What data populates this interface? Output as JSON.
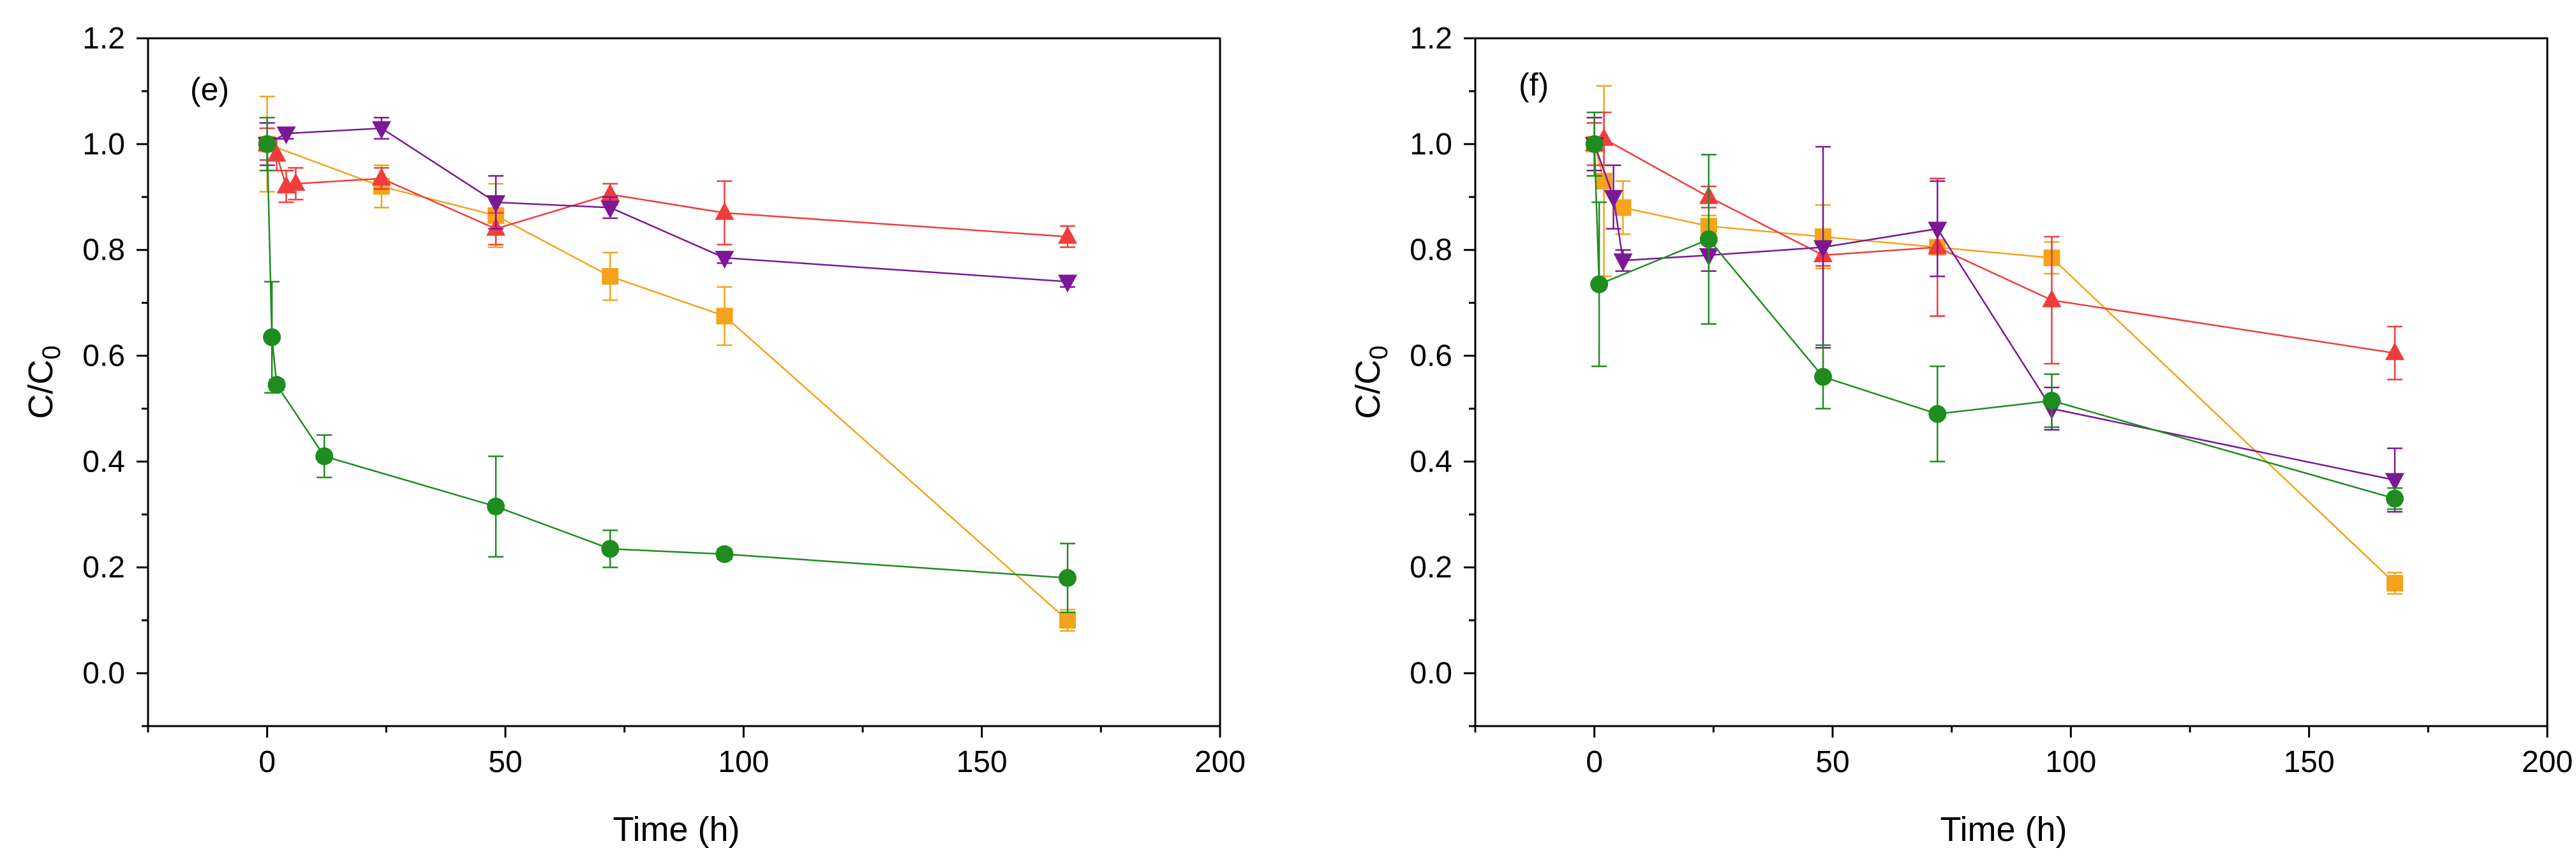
{
  "chart_data": [
    {
      "type": "line",
      "panel_label": "(e)",
      "xlabel": "Time (h)",
      "ylabel": "C/C",
      "ylabel_subscript": "0",
      "xlim": [
        -25,
        200
      ],
      "ylim": [
        -0.1,
        1.2
      ],
      "xticks": [
        0,
        50,
        100,
        150,
        200
      ],
      "xtick_labels": [
        "0",
        "50",
        "100",
        "150",
        "200"
      ],
      "yticks": [
        0.0,
        0.2,
        0.4,
        0.6,
        0.8,
        1.0,
        1.2
      ],
      "ytick_labels": [
        "0.0",
        "0.2",
        "0.4",
        "0.6",
        "0.8",
        "1.0",
        "1.2"
      ],
      "series": [
        {
          "name": "orange-squares",
          "marker": "square",
          "color": "#F5A31A",
          "x": [
            0,
            24,
            48,
            72,
            96,
            168
          ],
          "y": [
            1.0,
            0.92,
            0.865,
            0.75,
            0.675,
            0.1
          ],
          "err": [
            0.09,
            0.04,
            0.06,
            0.045,
            0.055,
            0.02
          ]
        },
        {
          "name": "red-up-triangles",
          "marker": "triangle-up",
          "color": "#F03C3C",
          "x": [
            0,
            2,
            4,
            6,
            24,
            48,
            72,
            96,
            168
          ],
          "y": [
            1.0,
            0.98,
            0.92,
            0.925,
            0.935,
            0.84,
            0.905,
            0.87,
            0.825
          ],
          "err": [
            0.03,
            0.03,
            0.03,
            0.03,
            0.02,
            0.03,
            0.02,
            0.06,
            0.02
          ]
        },
        {
          "name": "purple-down-triangles",
          "marker": "triangle-down",
          "color": "#7B1896",
          "x": [
            0,
            4,
            24,
            48,
            72,
            96,
            168
          ],
          "y": [
            1.0,
            1.02,
            1.03,
            0.89,
            0.88,
            0.785,
            0.74
          ],
          "err": [
            0.04,
            0.01,
            0.02,
            0.05,
            0.02,
            0.01,
            0.01
          ]
        },
        {
          "name": "green-circles",
          "marker": "circle",
          "color": "#1E8C1E",
          "x": [
            0,
            1,
            2,
            12,
            48,
            72,
            96,
            168
          ],
          "y": [
            1.0,
            0.635,
            0.545,
            0.41,
            0.315,
            0.235,
            0.225,
            0.18
          ],
          "err": [
            0.05,
            0.105,
            0.01,
            0.04,
            0.095,
            0.035,
            0.01,
            0.065
          ]
        }
      ]
    },
    {
      "type": "line",
      "panel_label": "(f)",
      "xlabel": "Time (h)",
      "ylabel": "C/C",
      "ylabel_subscript": "0",
      "xlim": [
        -25,
        200
      ],
      "ylim": [
        -0.1,
        1.2
      ],
      "xticks": [
        0,
        50,
        100,
        150,
        200
      ],
      "xtick_labels": [
        "0",
        "50",
        "100",
        "150",
        "200"
      ],
      "yticks": [
        0.0,
        0.2,
        0.4,
        0.6,
        0.8,
        1.0,
        1.2
      ],
      "ytick_labels": [
        "0.0",
        "0.2",
        "0.4",
        "0.6",
        "0.8",
        "1.0",
        "1.2"
      ],
      "series": [
        {
          "name": "orange-squares",
          "marker": "square",
          "color": "#F5A31A",
          "x": [
            0,
            2,
            6,
            24,
            48,
            72,
            96,
            168
          ],
          "y": [
            1.0,
            0.93,
            0.88,
            0.845,
            0.825,
            0.805,
            0.785,
            0.17
          ],
          "err": [
            0.05,
            0.18,
            0.05,
            0.02,
            0.06,
            0.13,
            0.03,
            0.02
          ]
        },
        {
          "name": "red-up-triangles",
          "marker": "triangle-up",
          "color": "#F03C3C",
          "x": [
            0,
            2,
            24,
            48,
            72,
            96,
            168
          ],
          "y": [
            1.0,
            1.01,
            0.9,
            0.79,
            0.805,
            0.705,
            0.605
          ],
          "err": [
            0.04,
            0.05,
            0.02,
            0.02,
            0.13,
            0.12,
            0.05
          ]
        },
        {
          "name": "purple-down-triangles",
          "marker": "triangle-down",
          "color": "#7B1896",
          "x": [
            0,
            4,
            6,
            24,
            48,
            72,
            96,
            168
          ],
          "y": [
            1.0,
            0.9,
            0.78,
            0.79,
            0.805,
            0.84,
            0.5,
            0.365
          ],
          "err": [
            0.05,
            0.06,
            0.02,
            0.03,
            0.19,
            0.09,
            0.04,
            0.06
          ]
        },
        {
          "name": "green-circles",
          "marker": "circle",
          "color": "#1E8C1E",
          "x": [
            0,
            1,
            24,
            48,
            72,
            96,
            168
          ],
          "y": [
            1.0,
            0.735,
            0.82,
            0.56,
            0.49,
            0.515,
            0.33
          ],
          "err": [
            0.06,
            0.155,
            0.16,
            0.06,
            0.09,
            0.05,
            0.02
          ]
        }
      ]
    }
  ]
}
